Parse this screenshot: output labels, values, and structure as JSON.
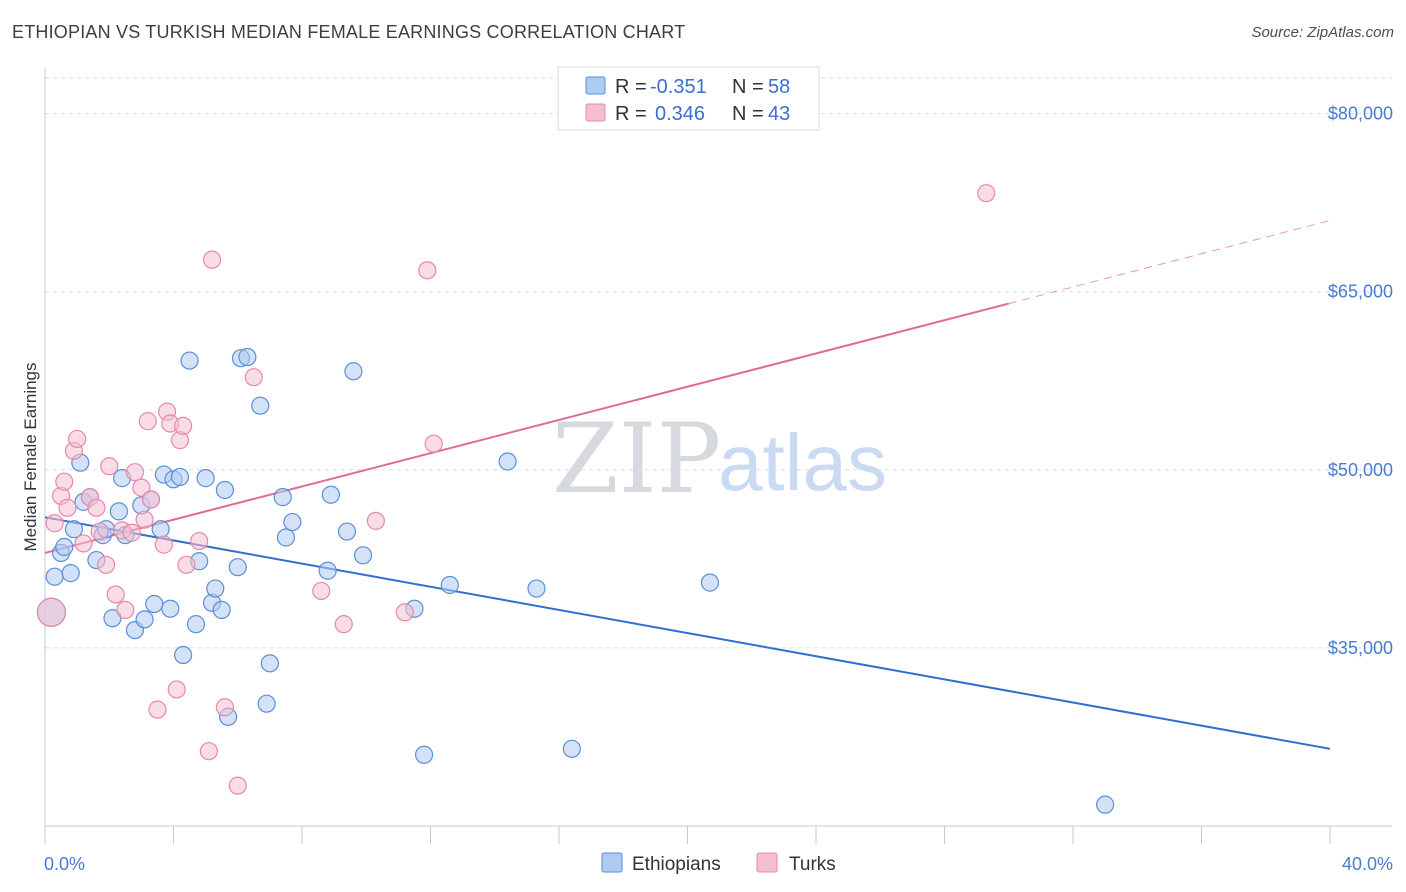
{
  "header": {
    "title": "ETHIOPIAN VS TURKISH MEDIAN FEMALE EARNINGS CORRELATION CHART",
    "source": "Source: ZipAtlas.com"
  },
  "watermark": {
    "zip": "ZIP",
    "atlas": "atlas"
  },
  "colors": {
    "ethiopians_fill": "#aecbf1",
    "ethiopians_stroke": "#5b8fd8",
    "ethiopians_line": "#2f6fd0",
    "turks_fill": "#f6bfd1",
    "turks_stroke": "#e58aa8",
    "turks_line": "#e06a92",
    "grid": "#d9dde3",
    "tick_text": "#4a7bd0"
  },
  "legend": {
    "rows": [
      {
        "r_label": "R =",
        "r_value": "-0.351",
        "n_label": "N =",
        "n_value": "58"
      },
      {
        "r_label": "R =",
        "r_value": "0.346",
        "n_label": "N =",
        "n_value": "43"
      }
    ]
  },
  "chart_data": {
    "type": "scatter",
    "title": "ETHIOPIAN VS TURKISH MEDIAN FEMALE EARNINGS CORRELATION CHART",
    "xlabel": "",
    "ylabel": "Median Female Earnings",
    "xlim": [
      0,
      40
    ],
    "ylim": [
      20000,
      83000
    ],
    "x_tick_labels": [
      {
        "value": 0,
        "label": "0.0%"
      },
      {
        "value": 40,
        "label": "40.0%"
      }
    ],
    "y_tick_labels": [
      {
        "value": 35000,
        "label": "$35,000"
      },
      {
        "value": 50000,
        "label": "$50,000"
      },
      {
        "value": 65000,
        "label": "$65,000"
      },
      {
        "value": 80000,
        "label": "$80,000"
      }
    ],
    "grid": true,
    "legend_position": "top-center",
    "series": [
      {
        "name": "Ethiopians",
        "R": -0.351,
        "N": 58,
        "trend": {
          "x0": 0,
          "y0": 46000,
          "x1": 40,
          "y1": 26500,
          "dashed_from": null
        },
        "points": [
          [
            0.2,
            38000
          ],
          [
            0.3,
            41000
          ],
          [
            0.5,
            43000
          ],
          [
            0.6,
            43500
          ],
          [
            0.8,
            41300
          ],
          [
            0.9,
            45000
          ],
          [
            1.1,
            50600
          ],
          [
            1.2,
            47300
          ],
          [
            1.4,
            47700
          ],
          [
            1.6,
            42400
          ],
          [
            1.8,
            44500
          ],
          [
            1.9,
            45000
          ],
          [
            2.1,
            37500
          ],
          [
            2.3,
            46500
          ],
          [
            2.4,
            49300
          ],
          [
            2.5,
            44500
          ],
          [
            2.8,
            36500
          ],
          [
            3.0,
            47000
          ],
          [
            3.1,
            37400
          ],
          [
            3.3,
            47500
          ],
          [
            3.4,
            38700
          ],
          [
            3.6,
            45000
          ],
          [
            3.7,
            49600
          ],
          [
            3.9,
            38300
          ],
          [
            4.0,
            49200
          ],
          [
            4.2,
            49400
          ],
          [
            4.3,
            34400
          ],
          [
            4.5,
            59200
          ],
          [
            4.7,
            37000
          ],
          [
            4.8,
            42300
          ],
          [
            5.0,
            49300
          ],
          [
            5.2,
            38800
          ],
          [
            5.3,
            40000
          ],
          [
            5.5,
            38200
          ],
          [
            5.6,
            48300
          ],
          [
            5.7,
            29200
          ],
          [
            6.0,
            41800
          ],
          [
            6.1,
            59400
          ],
          [
            6.3,
            59500
          ],
          [
            6.7,
            55400
          ],
          [
            6.9,
            30300
          ],
          [
            7.0,
            33700
          ],
          [
            7.4,
            47700
          ],
          [
            7.5,
            44300
          ],
          [
            7.7,
            45600
          ],
          [
            8.8,
            41500
          ],
          [
            8.9,
            47900
          ],
          [
            9.4,
            44800
          ],
          [
            9.6,
            58300
          ],
          [
            9.9,
            42800
          ],
          [
            11.5,
            38300
          ],
          [
            11.8,
            26000
          ],
          [
            12.6,
            40300
          ],
          [
            14.4,
            50700
          ],
          [
            15.3,
            40000
          ],
          [
            16.4,
            26500
          ],
          [
            20.7,
            40500
          ],
          [
            33.0,
            21800
          ]
        ]
      },
      {
        "name": "Turks",
        "R": 0.346,
        "N": 43,
        "trend": {
          "x0": 0,
          "y0": 43000,
          "x1": 40,
          "y1": 71000,
          "dashed_from": 30
        },
        "points": [
          [
            0.2,
            38000
          ],
          [
            0.3,
            45500
          ],
          [
            0.5,
            47800
          ],
          [
            0.6,
            49000
          ],
          [
            0.7,
            46800
          ],
          [
            0.9,
            51600
          ],
          [
            1.0,
            52600
          ],
          [
            1.2,
            43800
          ],
          [
            1.4,
            47700
          ],
          [
            1.6,
            46800
          ],
          [
            1.7,
            44800
          ],
          [
            1.9,
            42000
          ],
          [
            2.0,
            50300
          ],
          [
            2.2,
            39500
          ],
          [
            2.4,
            44900
          ],
          [
            2.5,
            38200
          ],
          [
            2.7,
            44700
          ],
          [
            2.8,
            49800
          ],
          [
            3.0,
            48500
          ],
          [
            3.1,
            45800
          ],
          [
            3.2,
            54100
          ],
          [
            3.3,
            47500
          ],
          [
            3.5,
            29800
          ],
          [
            3.7,
            43700
          ],
          [
            3.8,
            54900
          ],
          [
            3.9,
            53900
          ],
          [
            4.1,
            31500
          ],
          [
            4.2,
            52500
          ],
          [
            4.3,
            53700
          ],
          [
            4.4,
            42000
          ],
          [
            5.1,
            26300
          ],
          [
            5.2,
            67700
          ],
          [
            5.6,
            30000
          ],
          [
            6.0,
            23400
          ],
          [
            6.5,
            57800
          ],
          [
            8.6,
            39800
          ],
          [
            9.3,
            37000
          ],
          [
            10.3,
            45700
          ],
          [
            11.2,
            38000
          ],
          [
            11.9,
            66800
          ],
          [
            12.1,
            52200
          ],
          [
            29.3,
            73300
          ],
          [
            4.8,
            44000
          ]
        ]
      }
    ]
  },
  "bottom_legend": {
    "items": [
      {
        "label": "Ethiopians"
      },
      {
        "label": "Turks"
      }
    ]
  }
}
